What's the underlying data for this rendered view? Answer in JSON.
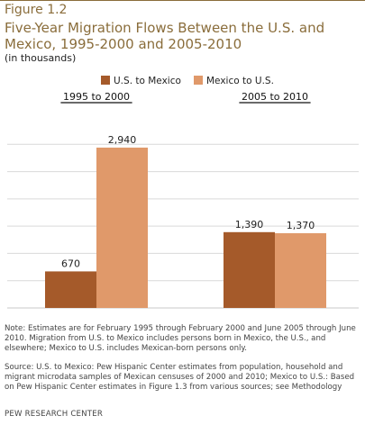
{
  "figure_label": "Figure 1.2",
  "title": "Five-Year Migration Flows Between the U.S. and Mexico, 1995-2000 and 2005-2010",
  "subtitle": "(in thousands)",
  "note": "Note: Estimates are for February 1995 through February 2000 and June 2005 through June 2010. Migration from U.S. to Mexico includes persons born in Mexico, the U.S., and elsewhere; Mexico to U.S. includes Mexican-born persons only.",
  "source": "Source: U.S. to Mexico: Pew Hispanic Center estimates from population, household and migrant microdata samples of Mexican censuses of 2000 and 2010; Mexico to U.S.: Based on Pew Hispanic Center estimates in Figure 1.3 from various sources; see Methodology",
  "credit": "PEW RESEARCH CENTER",
  "colors": {
    "us_to_mexico": "#a55a2a",
    "mexico_to_us": "#e0996a",
    "accent": "#8a6d3b"
  },
  "chart_data": {
    "type": "bar",
    "categories": [
      "1995 to 2000",
      "2005 to 2010"
    ],
    "series": [
      {
        "name": "U.S. to Mexico",
        "values": [
          670,
          1390
        ],
        "labels": [
          "670",
          "1,390"
        ]
      },
      {
        "name": "Mexico to U.S.",
        "values": [
          2940,
          1370
        ],
        "labels": [
          "2,940",
          "1,370"
        ]
      }
    ],
    "ylim": [
      0,
      3500
    ],
    "grid": true,
    "legend": "top-center"
  }
}
